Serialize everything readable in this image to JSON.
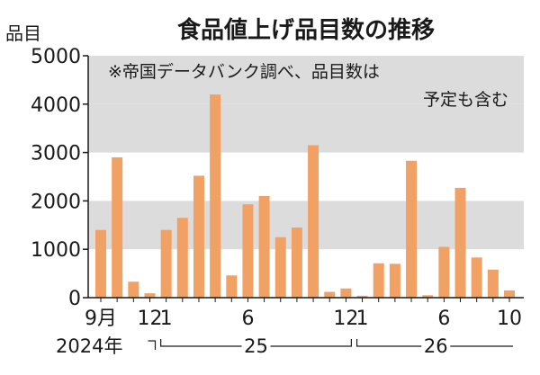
{
  "chart_data": {
    "type": "bar",
    "title": "食品値上げ品目数の推移",
    "ylabel": "品目",
    "ylim": [
      0,
      5000
    ],
    "yticks": [
      "0",
      "1000",
      "2000",
      "3000",
      "4000",
      "5000"
    ],
    "grid": "alternating gray horizontal bands",
    "note_lines": [
      "※帝国データバンク調べ、品目数は",
      "予定も含む"
    ],
    "months": [
      "2024-09",
      "2024-10",
      "2024-11",
      "2024-12",
      "2025-01",
      "2025-02",
      "2025-03",
      "2025-04",
      "2025-05",
      "2025-06",
      "2025-07",
      "2025-08",
      "2025-09",
      "2025-10",
      "2025-11",
      "2025-12",
      "2026-01",
      "2026-02",
      "2026-03",
      "2026-04",
      "2026-05",
      "2026-06",
      "2026-07",
      "2026-08",
      "2026-09",
      "2026-10"
    ],
    "values": [
      1400,
      2900,
      330,
      90,
      1400,
      1650,
      2520,
      4200,
      460,
      1930,
      2100,
      1250,
      1450,
      3150,
      120,
      190,
      40,
      710,
      700,
      2830,
      50,
      1050,
      2270,
      830,
      580,
      150
    ],
    "x_tick_labels": [
      {
        "index": 0,
        "text": "9月"
      },
      {
        "index": 3,
        "text": "12"
      },
      {
        "index": 4,
        "text": "1"
      },
      {
        "index": 9,
        "text": "6"
      },
      {
        "index": 15,
        "text": "12"
      },
      {
        "index": 16,
        "text": "1"
      },
      {
        "index": 21,
        "text": "6"
      },
      {
        "index": 25,
        "text": "10"
      }
    ],
    "year_labels": [
      {
        "text": "2024年",
        "from": 0,
        "to": 3
      },
      {
        "text": "25",
        "from": 4,
        "to": 15
      },
      {
        "text": "26",
        "from": 16,
        "to": 25
      }
    ],
    "colors": {
      "bar": "#f2a165",
      "band": "#dcdcdc",
      "text": "#1a1a1a"
    }
  }
}
